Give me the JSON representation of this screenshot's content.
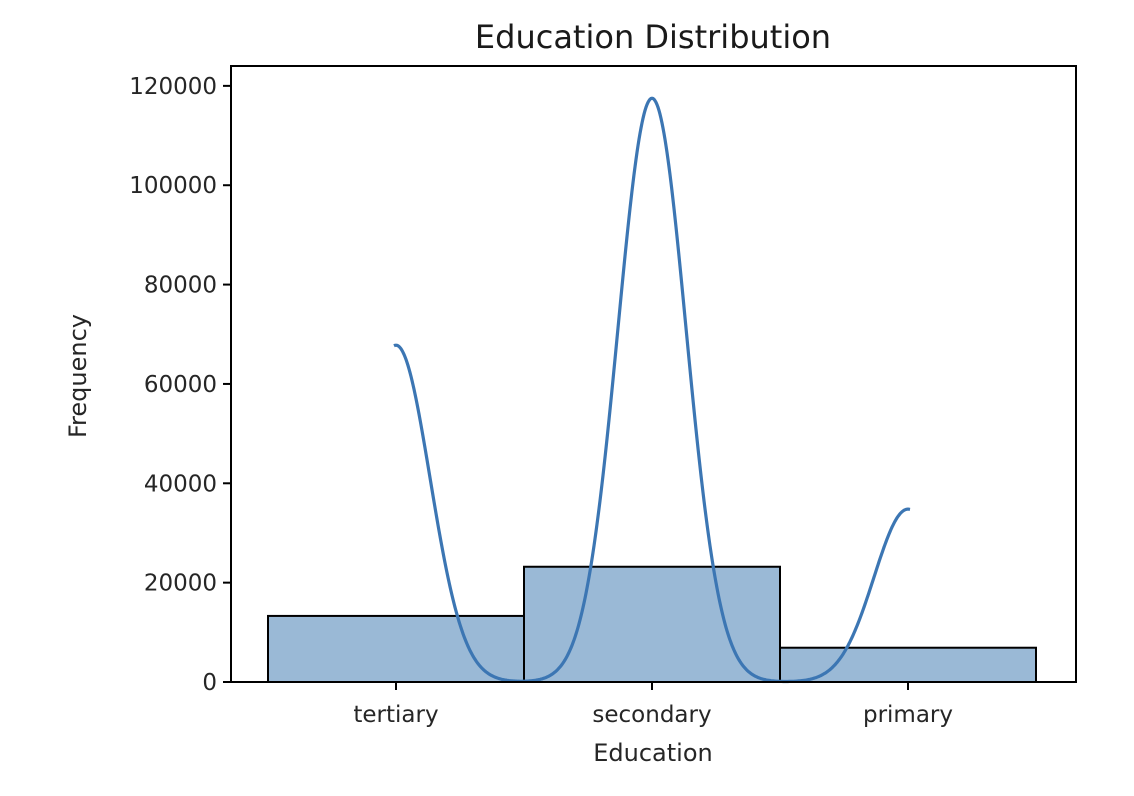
{
  "chart_data": {
    "type": "bar",
    "title": "Education Distribution",
    "xlabel": "Education",
    "ylabel": "Frequency",
    "categories": [
      "tertiary",
      "secondary",
      "primary"
    ],
    "values": [
      13300,
      23200,
      6900
    ],
    "ylim": [
      0,
      124000
    ],
    "yticks": [
      0,
      20000,
      40000,
      60000,
      80000,
      100000,
      120000
    ],
    "ytick_labels": [
      "0",
      "20000",
      "40000",
      "60000",
      "80000",
      "100000",
      "120000"
    ],
    "kde": {
      "peaks": [
        67800,
        117500,
        34800
      ],
      "description": ""
    },
    "grid": false,
    "legend": "none",
    "colors": {
      "bar_fill": "#9ab9d6",
      "bar_edge": "#000000",
      "kde_line": "#3c76b3",
      "axis": "#000000"
    }
  }
}
